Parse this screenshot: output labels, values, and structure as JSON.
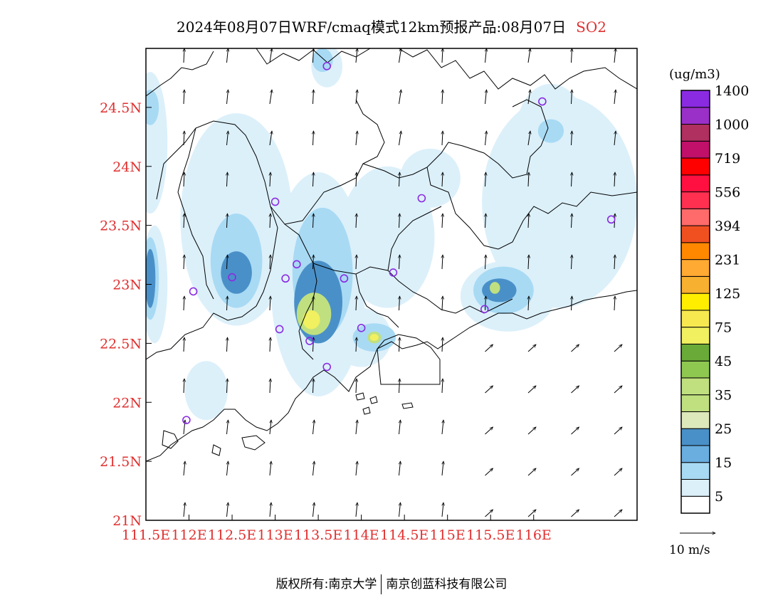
{
  "title": {
    "main": "2024年08月07日WRF/cmaq模式12km预报产品:08月07日",
    "species": "SO2"
  },
  "map": {
    "lon_range": [
      111.5,
      117.2
    ],
    "lat_range": [
      21.0,
      25.0
    ],
    "lon_ticks": [
      {
        "value": 111.5,
        "label": "111.5E"
      },
      {
        "value": 112.0,
        "label": "112E"
      },
      {
        "value": 112.5,
        "label": "112.5E"
      },
      {
        "value": 113.0,
        "label": "113E"
      },
      {
        "value": 113.5,
        "label": "113.5E"
      },
      {
        "value": 114.0,
        "label": "114E"
      },
      {
        "value": 114.5,
        "label": "114.5E"
      },
      {
        "value": 115.0,
        "label": "115E"
      },
      {
        "value": 115.5,
        "label": "115.5E"
      },
      {
        "value": 116.0,
        "label": "116E"
      }
    ],
    "lat_ticks": [
      {
        "value": 24.5,
        "label": "24.5N"
      },
      {
        "value": 24.0,
        "label": "24N"
      },
      {
        "value": 23.5,
        "label": "23.5N"
      },
      {
        "value": 23.0,
        "label": "23N"
      },
      {
        "value": 22.5,
        "label": "22.5N"
      },
      {
        "value": 22.0,
        "label": "22N"
      },
      {
        "value": 21.5,
        "label": "21.5N"
      },
      {
        "value": 21.0,
        "label": "21N"
      }
    ],
    "tick_label_color": "#e03030",
    "stations": [
      [
        113.6,
        24.85
      ],
      [
        116.1,
        24.55
      ],
      [
        113.0,
        23.7
      ],
      [
        114.7,
        23.73
      ],
      [
        116.9,
        23.55
      ],
      [
        113.25,
        23.17
      ],
      [
        113.12,
        23.05
      ],
      [
        113.8,
        23.05
      ],
      [
        114.37,
        23.1
      ],
      [
        112.5,
        23.06
      ],
      [
        112.05,
        22.94
      ],
      [
        115.43,
        22.79
      ],
      [
        113.05,
        22.62
      ],
      [
        113.4,
        22.52
      ],
      [
        114.0,
        22.63
      ],
      [
        113.6,
        22.3
      ],
      [
        111.97,
        21.85
      ]
    ],
    "station_color": "#8a2be2"
  },
  "concentration_field": [
    {
      "level": "5",
      "color": "#dcf0fa",
      "blobs": [
        [
          111.55,
          24.2,
          0.2,
          0.6
        ],
        [
          112.55,
          23.55,
          0.65,
          0.9
        ],
        [
          113.5,
          23.0,
          0.55,
          0.95
        ],
        [
          114.3,
          23.4,
          0.55,
          0.6
        ],
        [
          116.3,
          23.7,
          0.9,
          0.9
        ],
        [
          115.7,
          22.9,
          0.55,
          0.3
        ],
        [
          116.2,
          24.3,
          0.4,
          0.4
        ],
        [
          113.6,
          24.85,
          0.18,
          0.18
        ],
        [
          112.2,
          22.1,
          0.25,
          0.25
        ],
        [
          114.0,
          22.55,
          0.35,
          0.25
        ],
        [
          111.6,
          23.0,
          0.15,
          0.5
        ],
        [
          114.8,
          23.9,
          0.35,
          0.25
        ]
      ]
    },
    {
      "level": "15",
      "color": "#a8daf4",
      "blobs": [
        [
          112.55,
          23.2,
          0.3,
          0.4
        ],
        [
          113.55,
          23.1,
          0.35,
          0.55
        ],
        [
          115.65,
          22.95,
          0.35,
          0.2
        ],
        [
          111.55,
          23.05,
          0.1,
          0.35
        ],
        [
          113.55,
          24.9,
          0.12,
          0.1
        ],
        [
          116.2,
          24.3,
          0.15,
          0.1
        ],
        [
          114.15,
          22.55,
          0.25,
          0.12
        ],
        [
          111.55,
          24.5,
          0.1,
          0.15
        ]
      ]
    },
    {
      "level": "25",
      "color": "#4a90c8",
      "blobs": [
        [
          112.55,
          23.1,
          0.18,
          0.18
        ],
        [
          113.5,
          22.85,
          0.28,
          0.35
        ],
        [
          115.6,
          22.95,
          0.2,
          0.1
        ],
        [
          111.55,
          23.05,
          0.06,
          0.25
        ]
      ]
    },
    {
      "level": "35",
      "color": "#c0e080",
      "blobs": [
        [
          113.45,
          22.75,
          0.2,
          0.18
        ],
        [
          115.55,
          22.97,
          0.06,
          0.05
        ],
        [
          114.15,
          22.55,
          0.08,
          0.05
        ]
      ]
    },
    {
      "level": "75",
      "color": "#f0f060",
      "blobs": [
        [
          113.42,
          22.7,
          0.1,
          0.08
        ],
        [
          114.15,
          22.55,
          0.05,
          0.03
        ]
      ]
    }
  ],
  "legend": {
    "units": "(ug/m3)",
    "colors": [
      "#ffffff",
      "#dcf0fa",
      "#a8daf4",
      "#6aaee0",
      "#4a90c8",
      "#dde8bb",
      "#c0e080",
      "#c0e080",
      "#8ec850",
      "#6aaa38",
      "#f0f060",
      "#f8e850",
      "#ffee00",
      "#f8b030",
      "#ffaa33",
      "#ff8800",
      "#f05020",
      "#ff6a6a",
      "#ff3050",
      "#ff1040",
      "#ff0000",
      "#c0106a",
      "#b03060",
      "#9a30c8",
      "#8a2be2"
    ],
    "labels": [
      "5",
      "15",
      "25",
      "35",
      "45",
      "75",
      "125",
      "231",
      "394",
      "556",
      "719",
      "1000",
      "1400"
    ]
  },
  "wind_reference": {
    "label": "10 m/s"
  },
  "footer": {
    "left": "版权所有:南京大学",
    "right": "南京创蓝科技有限公司"
  }
}
